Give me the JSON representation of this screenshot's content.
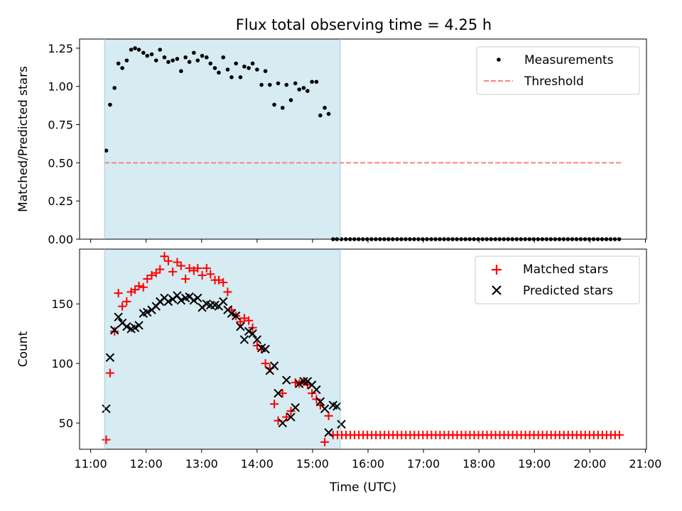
{
  "title": "Flux total observing time = 4.25 h",
  "xlabel": "Time (UTC)",
  "x_ticks": [
    "11:00",
    "12:00",
    "13:00",
    "14:00",
    "15:00",
    "16:00",
    "17:00",
    "18:00",
    "19:00",
    "20:00",
    "21:00"
  ],
  "x_tick_hours": [
    11,
    12,
    13,
    14,
    15,
    16,
    17,
    18,
    19,
    20,
    21
  ],
  "shaded_interval_hours": [
    11.25,
    15.5
  ],
  "colors": {
    "shade": "#add8e6",
    "measurement": "#000000",
    "threshold": "#ff7f7f",
    "matched": "#ff0000",
    "predicted": "#000000"
  },
  "chart_data": [
    {
      "type": "scatter",
      "panel": "top",
      "ylabel": "Matched/Predicted stars",
      "xlim": [
        10.8,
        21.02
      ],
      "ylim": [
        0,
        1.31
      ],
      "y_ticks": [
        0.0,
        0.25,
        0.5,
        0.75,
        1.0,
        1.25
      ],
      "y_tick_labels": [
        "0.00",
        "0.25",
        "0.50",
        "0.75",
        "1.00",
        "1.25"
      ],
      "legend": {
        "location": "upper right",
        "items": [
          "Measurements",
          "Threshold"
        ]
      },
      "threshold": {
        "name": "Threshold",
        "y": 0.5,
        "x": [
          11.25,
          20.6
        ]
      },
      "series": [
        {
          "name": "Measurements",
          "x": [
            11.28,
            11.35,
            11.43,
            11.5,
            11.57,
            11.65,
            11.73,
            11.8,
            11.87,
            11.95,
            12.02,
            12.1,
            12.18,
            12.25,
            12.33,
            12.4,
            12.48,
            12.56,
            12.63,
            12.71,
            12.78,
            12.86,
            12.93,
            13.01,
            13.09,
            13.16,
            13.24,
            13.31,
            13.39,
            13.47,
            13.54,
            13.62,
            13.7,
            13.77,
            13.85,
            13.92,
            14.0,
            14.08,
            14.15,
            14.23,
            14.31,
            14.38,
            14.46,
            14.53,
            14.61,
            14.69,
            14.76,
            14.84,
            14.91,
            14.99,
            15.07,
            15.14,
            15.22,
            15.29,
            15.37,
            15.44,
            15.52
          ],
          "y": [
            0.58,
            0.88,
            0.99,
            1.15,
            1.12,
            1.17,
            1.24,
            1.25,
            1.24,
            1.22,
            1.2,
            1.21,
            1.17,
            1.24,
            1.19,
            1.16,
            1.17,
            1.18,
            1.1,
            1.19,
            1.16,
            1.22,
            1.17,
            1.2,
            1.19,
            1.15,
            1.12,
            1.09,
            1.19,
            1.11,
            1.06,
            1.15,
            1.06,
            1.13,
            1.12,
            1.15,
            1.11,
            1.01,
            1.1,
            1.01,
            0.88,
            1.02,
            0.86,
            1.01,
            0.91,
            1.02,
            0.98,
            0.99,
            0.97,
            1.03,
            1.03,
            0.81,
            0.86,
            0.82,
            0.0,
            0.0,
            0.0
          ]
        },
        {
          "name": "Zero readings",
          "x_start": 15.6,
          "x_end": 20.6,
          "step": 0.077,
          "y": 0.0
        }
      ]
    },
    {
      "type": "scatter",
      "panel": "bottom",
      "ylabel": "Count",
      "xlim": [
        10.8,
        21.02
      ],
      "ylim": [
        28,
        196
      ],
      "y_ticks": [
        50,
        100,
        150
      ],
      "y_tick_labels": [
        "50",
        "100",
        "150"
      ],
      "legend": {
        "location": "upper right",
        "items": [
          "Matched stars",
          "Predicted stars"
        ]
      },
      "series": [
        {
          "name": "Matched stars",
          "marker": "+",
          "x": [
            11.28,
            11.35,
            11.43,
            11.5,
            11.57,
            11.65,
            11.73,
            11.8,
            11.87,
            11.95,
            12.02,
            12.1,
            12.18,
            12.25,
            12.33,
            12.4,
            12.48,
            12.56,
            12.63,
            12.71,
            12.78,
            12.86,
            12.93,
            13.01,
            13.09,
            13.16,
            13.24,
            13.31,
            13.39,
            13.47,
            13.54,
            13.62,
            13.7,
            13.77,
            13.85,
            13.92,
            14.0,
            14.08,
            14.15,
            14.23,
            14.31,
            14.38,
            14.46,
            14.53,
            14.61,
            14.69,
            14.76,
            14.84,
            14.91,
            14.99,
            15.07,
            15.14,
            15.22,
            15.29,
            15.37
          ],
          "y": [
            36,
            92,
            127,
            159,
            148,
            152,
            160,
            162,
            165,
            164,
            171,
            174,
            176,
            179,
            190,
            186,
            177,
            185,
            182,
            171,
            180,
            178,
            180,
            174,
            180,
            175,
            170,
            170,
            168,
            160,
            145,
            140,
            135,
            138,
            136,
            130,
            115,
            112,
            100,
            96,
            66,
            52,
            75,
            55,
            60,
            84,
            83,
            85,
            82,
            75,
            70,
            65,
            34,
            56,
            40
          ]
        },
        {
          "name": "Matched stars (baseline)",
          "marker": "+",
          "x_start": 15.45,
          "x_end": 20.6,
          "step": 0.077,
          "y": 40
        },
        {
          "name": "Predicted stars",
          "marker": "x",
          "x": [
            11.28,
            11.35,
            11.43,
            11.5,
            11.57,
            11.65,
            11.73,
            11.8,
            11.87,
            11.95,
            12.02,
            12.1,
            12.18,
            12.25,
            12.33,
            12.4,
            12.48,
            12.56,
            12.63,
            12.71,
            12.78,
            12.86,
            12.93,
            13.01,
            13.09,
            13.16,
            13.24,
            13.31,
            13.39,
            13.47,
            13.54,
            13.62,
            13.7,
            13.77,
            13.85,
            13.92,
            14.0,
            14.08,
            14.15,
            14.23,
            14.31,
            14.38,
            14.46,
            14.53,
            14.61,
            14.69,
            14.76,
            14.84,
            14.91,
            14.99,
            15.07,
            15.14,
            15.22,
            15.29,
            15.37,
            15.44,
            15.52
          ],
          "y": [
            62,
            105,
            128,
            139,
            134,
            131,
            129,
            130,
            132,
            142,
            143,
            145,
            148,
            152,
            155,
            152,
            154,
            157,
            153,
            155,
            156,
            153,
            155,
            147,
            150,
            149,
            149,
            148,
            152,
            145,
            142,
            140,
            131,
            120,
            127,
            125,
            120,
            113,
            112,
            94,
            98,
            75,
            50,
            86,
            55,
            63,
            83,
            85,
            85,
            82,
            78,
            68,
            62,
            42,
            65,
            64,
            49
          ]
        }
      ]
    }
  ]
}
